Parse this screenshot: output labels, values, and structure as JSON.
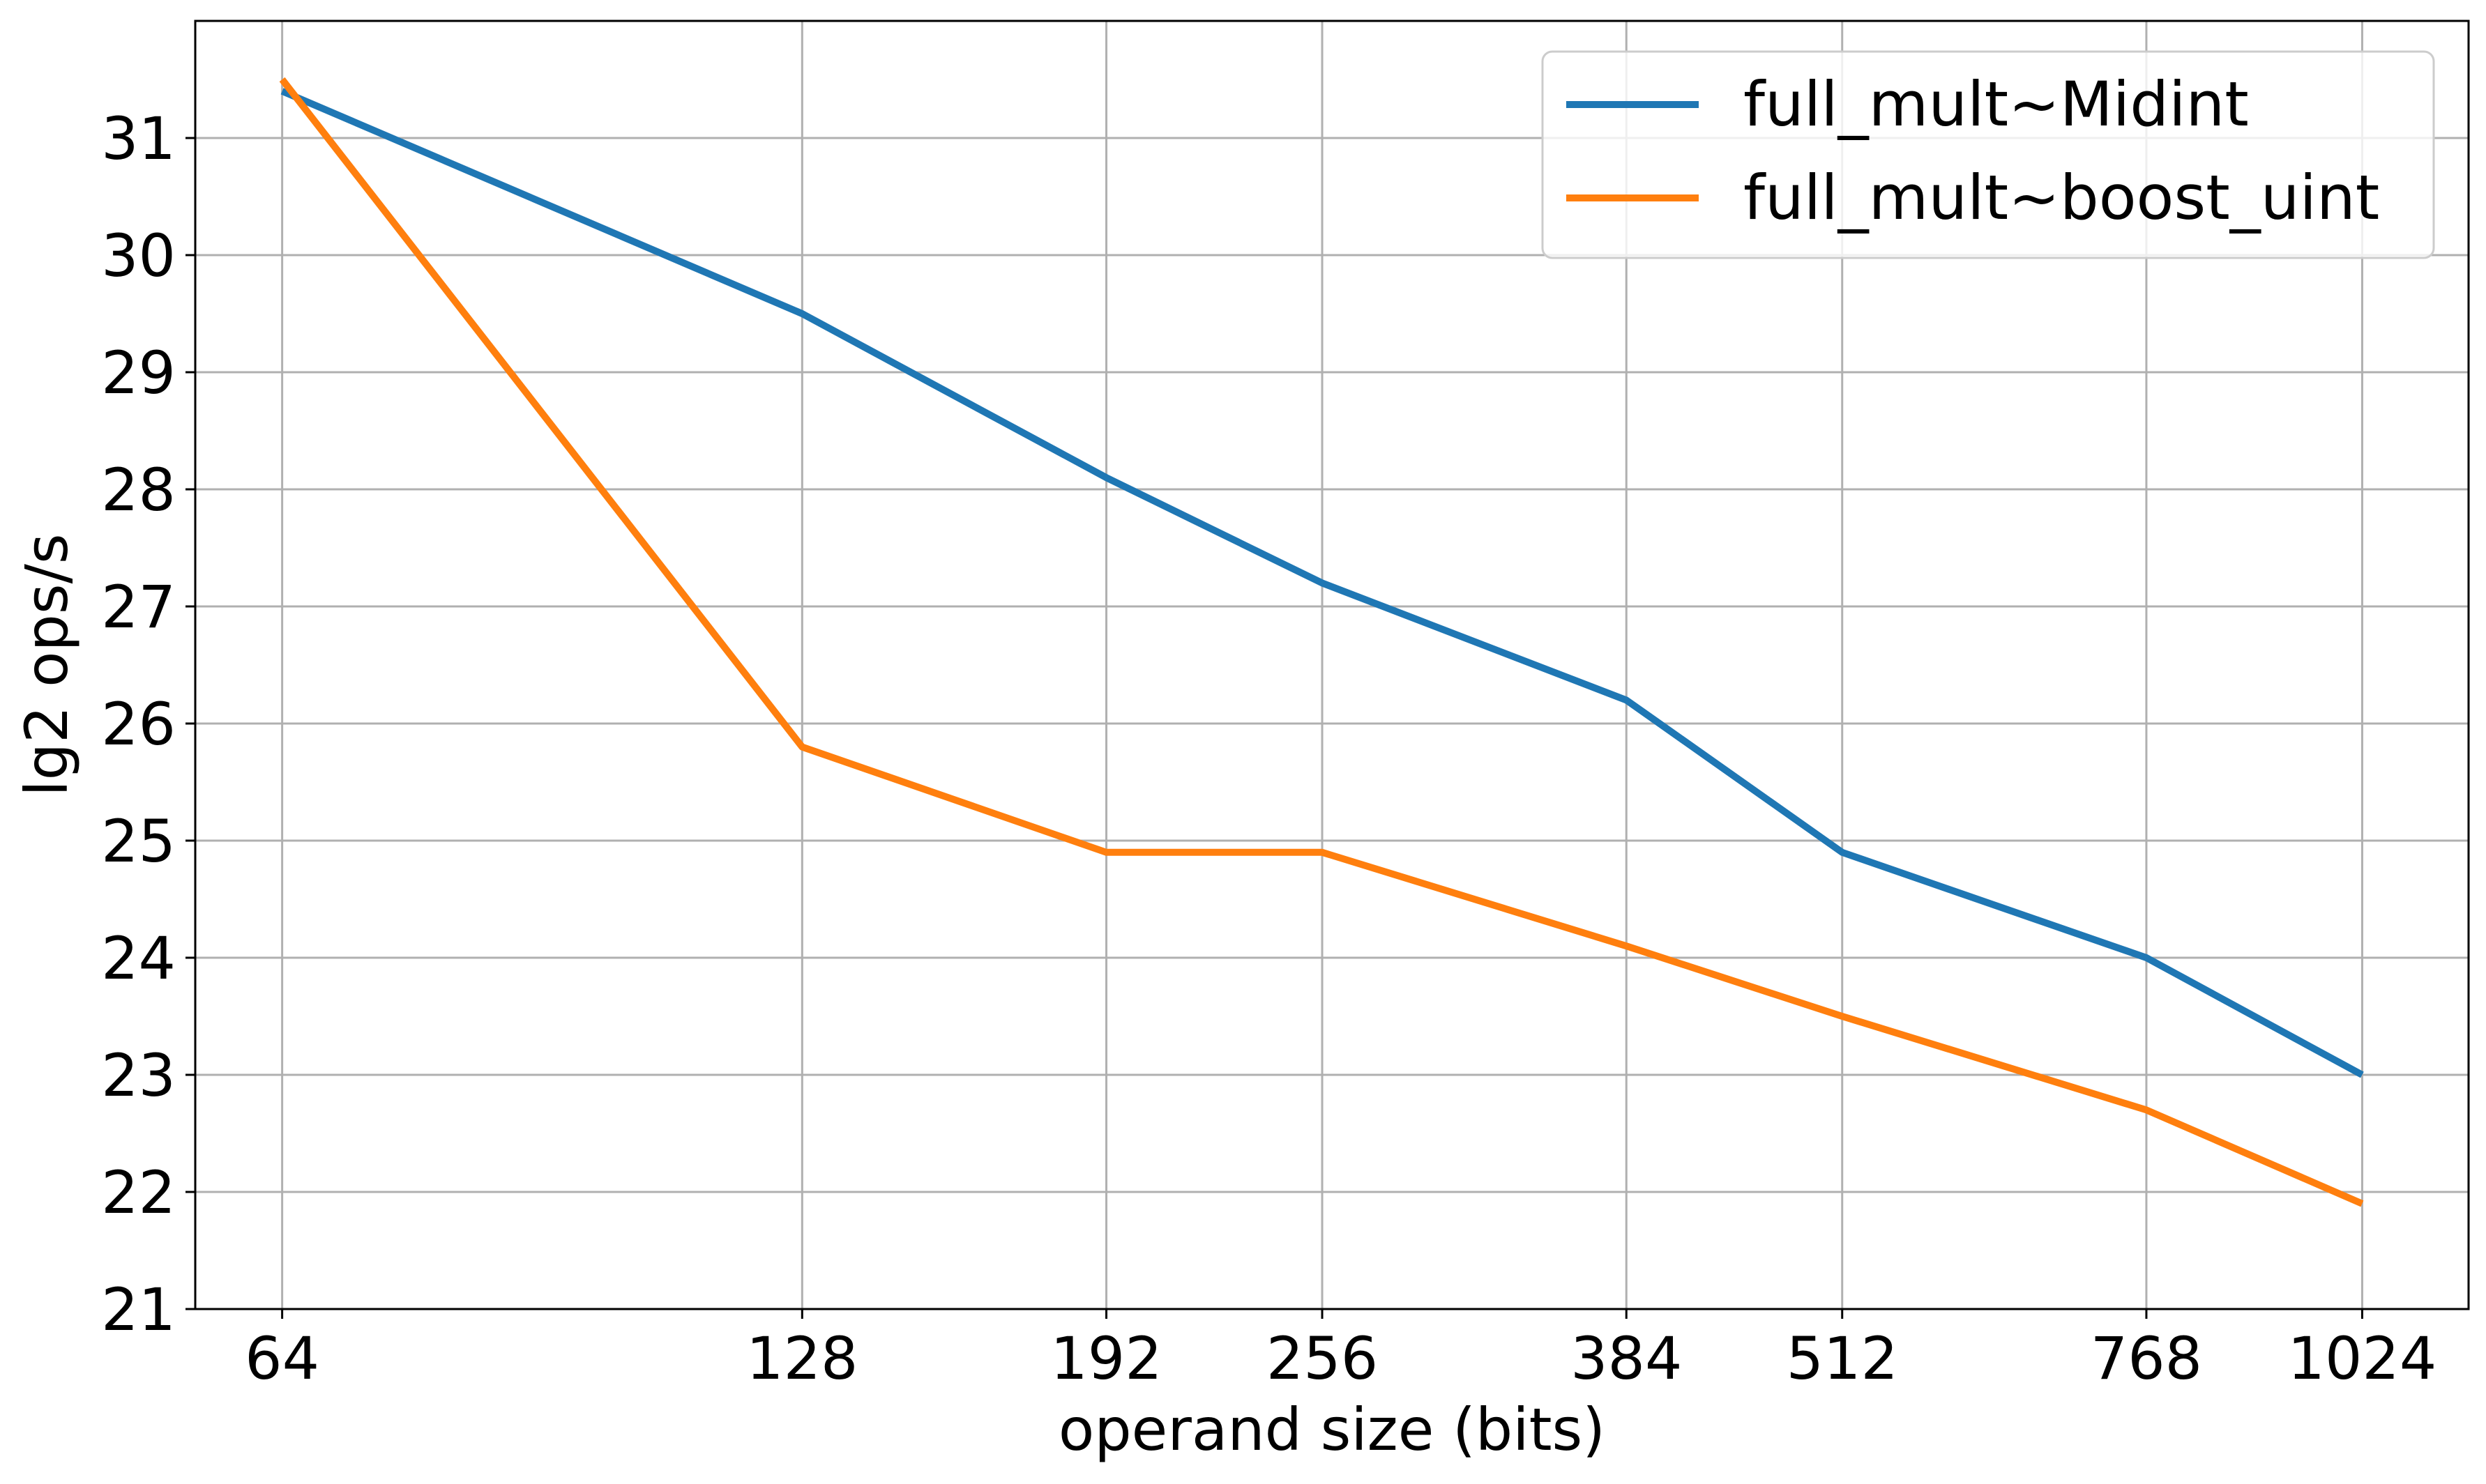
{
  "chart_data": {
    "type": "line",
    "title": "",
    "xlabel": "operand size (bits)",
    "ylabel": "lg2 ops/s",
    "x": [
      64,
      128,
      192,
      256,
      384,
      512,
      768,
      1024
    ],
    "x_tick_labels": [
      "64",
      "128",
      "192",
      "256",
      "384",
      "512",
      "768",
      "1024"
    ],
    "x_scale": "log2",
    "xlim": [
      57,
      1180
    ],
    "y_ticks": [
      21,
      22,
      23,
      24,
      25,
      26,
      27,
      28,
      29,
      30,
      31
    ],
    "ylim": [
      21,
      32
    ],
    "grid": true,
    "legend_position": "upper right",
    "series": [
      {
        "name": "full_mult~Midint",
        "color": "#1f77b4",
        "values": [
          31.4,
          29.5,
          28.1,
          27.2,
          26.2,
          24.9,
          24.0,
          23.0
        ]
      },
      {
        "name": "full_mult~boost_uint",
        "color": "#ff7f0e",
        "values": [
          31.5,
          25.8,
          24.9,
          24.9,
          24.1,
          23.5,
          22.7,
          21.9
        ]
      }
    ]
  }
}
